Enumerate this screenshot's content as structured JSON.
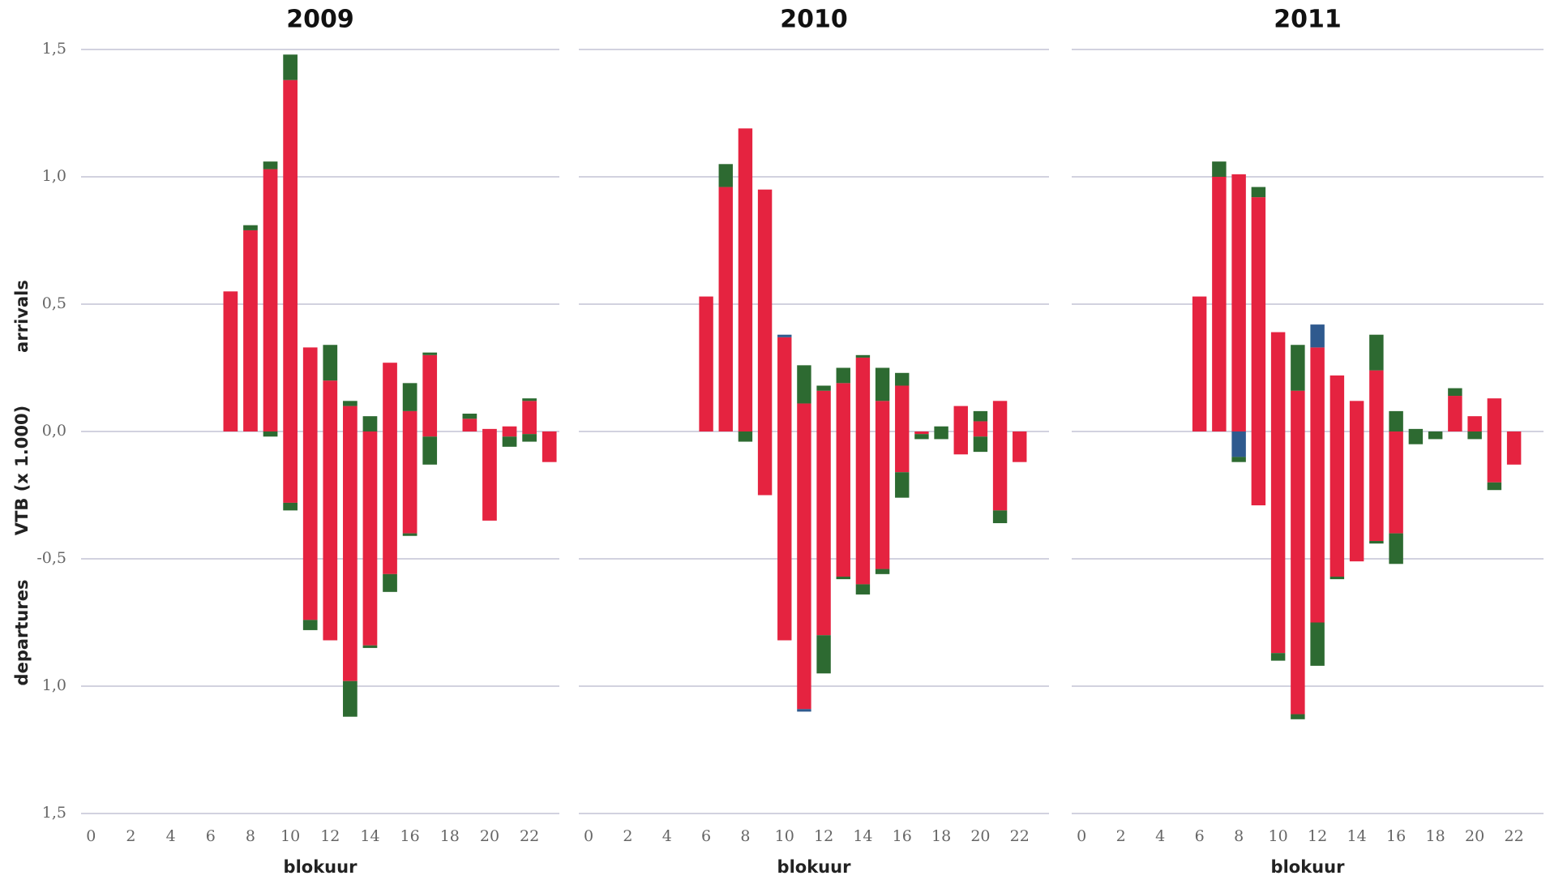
{
  "chart_data": [
    {
      "type": "bar",
      "title": "2009",
      "xlabel": "blokuur",
      "ylabel": "VTB (x 1.000)",
      "annotations": [
        "arrivals",
        "departures"
      ],
      "categories": [
        0,
        null,
        2,
        null,
        4,
        null,
        6,
        null,
        8,
        null,
        10,
        null,
        12,
        null,
        14,
        null,
        16,
        null,
        18,
        null,
        20,
        null,
        22,
        null
      ],
      "ylim": [
        -1.5,
        1.5
      ],
      "yticks": [
        {
          "value": 1.5,
          "label": "1,5"
        },
        {
          "value": 1,
          "label": "1,0"
        },
        {
          "value": 0.5,
          "label": "0,5"
        },
        {
          "value": 0,
          "label": "0,0"
        },
        {
          "value": -0.5,
          "label": "-0,5"
        },
        {
          "value": -1,
          "label": "1,0"
        },
        {
          "value": -1.5,
          "label": "1,5"
        }
      ],
      "series": [
        {
          "color": "#e52340",
          "values": [
            0,
            0,
            0,
            0,
            0,
            0,
            0,
            0.55,
            0.79,
            1.03,
            1.38,
            0.33,
            0.2,
            0.1,
            0,
            0.27,
            0.08,
            0.3,
            0,
            0.05,
            0.01,
            0.02,
            0.12,
            0
          ]
        },
        {
          "color": "#2d6a31",
          "values": [
            0,
            0,
            0,
            0,
            0,
            0,
            0,
            0,
            0.02,
            0.03,
            0.1,
            0,
            0.14,
            0.02,
            0.06,
            0,
            0.11,
            0.01,
            0,
            0.02,
            0,
            0,
            0.01,
            0
          ]
        },
        {
          "color": "#2f5a8e",
          "values": [
            0,
            0,
            0,
            0,
            0,
            0,
            0,
            0,
            0,
            0,
            0,
            0,
            0,
            0,
            0,
            0,
            0,
            0,
            0,
            0,
            0,
            0,
            0,
            0
          ]
        },
        {
          "color": "#e52340",
          "values": [
            0,
            0,
            0,
            0,
            0,
            0,
            0,
            0,
            0,
            0,
            -0.28,
            -0.74,
            -0.82,
            -0.98,
            -0.84,
            -0.56,
            -0.4,
            -0.02,
            0,
            0,
            -0.35,
            -0.02,
            -0.01,
            -0.12
          ]
        },
        {
          "color": "#2f5a8e",
          "values": [
            0,
            0,
            0,
            0,
            0,
            0,
            0,
            0,
            0,
            0,
            0,
            0,
            0,
            0,
            0,
            0,
            0,
            0,
            0,
            0,
            0,
            0,
            0,
            0
          ]
        },
        {
          "color": "#2d6a31",
          "values": [
            0,
            0,
            0,
            0,
            0,
            0,
            0,
            0,
            0,
            -0.02,
            -0.03,
            -0.04,
            0,
            -0.14,
            -0.01,
            -0.07,
            -0.01,
            -0.11,
            0,
            0,
            0,
            -0.04,
            -0.03,
            0
          ]
        }
      ]
    },
    {
      "type": "bar",
      "title": "2010",
      "xlabel": "blokuur",
      "categories": [
        0,
        null,
        2,
        null,
        4,
        null,
        6,
        null,
        8,
        null,
        10,
        null,
        12,
        null,
        14,
        null,
        16,
        null,
        18,
        null,
        20,
        null,
        22,
        null
      ],
      "ylim": [
        -1.5,
        1.5
      ],
      "yticks": [
        1.5,
        1,
        0.5,
        0,
        -0.5,
        -1,
        -1.5
      ],
      "series": [
        {
          "color": "#e52340",
          "values": [
            0,
            0,
            0,
            0,
            0,
            0,
            0.53,
            0.96,
            1.19,
            0.95,
            0.37,
            0.11,
            0.16,
            0.19,
            0.29,
            0.12,
            0.18,
            0,
            0,
            0.1,
            0.04,
            0.12,
            0,
            0
          ]
        },
        {
          "color": "#2d6a31",
          "values": [
            0,
            0,
            0,
            0,
            0,
            0,
            0,
            0.09,
            0,
            0,
            0,
            0.15,
            0.02,
            0.06,
            0.01,
            0.13,
            0.05,
            0,
            0.02,
            0,
            0.04,
            0,
            0,
            0
          ]
        },
        {
          "color": "#2f5a8e",
          "values": [
            0,
            0,
            0,
            0,
            0,
            0,
            0,
            0,
            0,
            0,
            0.01,
            0,
            0,
            0,
            0,
            0,
            0,
            0,
            0,
            0,
            0,
            0,
            0,
            0
          ]
        },
        {
          "color": "#e52340",
          "values": [
            0,
            0,
            0,
            0,
            0,
            0,
            0,
            0,
            0,
            -0.25,
            -0.82,
            -1.09,
            -0.8,
            -0.57,
            -0.6,
            -0.54,
            -0.16,
            -0.01,
            0,
            -0.09,
            -0.02,
            -0.31,
            -0.12,
            0
          ]
        },
        {
          "color": "#2f5a8e",
          "values": [
            0,
            0,
            0,
            0,
            0,
            0,
            0,
            0,
            0,
            0,
            0,
            -0.01,
            0,
            0,
            0,
            0,
            0,
            0,
            0,
            0,
            0,
            0,
            0,
            0
          ]
        },
        {
          "color": "#2d6a31",
          "values": [
            0,
            0,
            0,
            0,
            0,
            0,
            0,
            0,
            -0.04,
            0,
            0,
            0,
            -0.15,
            -0.01,
            -0.04,
            -0.02,
            -0.1,
            -0.02,
            -0.03,
            0,
            -0.06,
            -0.05,
            0,
            0
          ]
        }
      ]
    },
    {
      "type": "bar",
      "title": "2011",
      "xlabel": "blokuur",
      "categories": [
        0,
        null,
        2,
        null,
        4,
        null,
        6,
        null,
        8,
        null,
        10,
        null,
        12,
        null,
        14,
        null,
        16,
        null,
        18,
        null,
        20,
        null,
        22,
        null
      ],
      "ylim": [
        -1.5,
        1.5
      ],
      "yticks": [
        1.5,
        1,
        0.5,
        0,
        -0.5,
        -1,
        -1.5
      ],
      "series": [
        {
          "color": "#e52340",
          "values": [
            0,
            0,
            0,
            0,
            0,
            0,
            0.53,
            1.0,
            1.01,
            0.92,
            0.39,
            0.16,
            0.33,
            0.22,
            0.12,
            0.24,
            0,
            0,
            0,
            0.14,
            0.06,
            0.13,
            0,
            0
          ]
        },
        {
          "color": "#2d6a31",
          "values": [
            0,
            0,
            0,
            0,
            0,
            0,
            0,
            0.06,
            0,
            0.04,
            0,
            0.18,
            0,
            0,
            0,
            0.14,
            0.08,
            0.01,
            0,
            0.03,
            0,
            0,
            0,
            0
          ]
        },
        {
          "color": "#2f5a8e",
          "values": [
            0,
            0,
            0,
            0,
            0,
            0,
            0,
            0,
            0,
            0,
            0,
            0,
            0.09,
            0,
            0,
            0,
            0,
            0,
            0,
            0,
            0,
            0,
            0,
            0
          ]
        },
        {
          "color": "#e52340",
          "values": [
            0,
            0,
            0,
            0,
            0,
            0,
            0,
            0,
            0,
            -0.29,
            -0.87,
            -1.11,
            -0.75,
            -0.57,
            -0.51,
            -0.43,
            -0.4,
            0,
            0,
            0,
            0,
            -0.2,
            -0.13,
            0
          ]
        },
        {
          "color": "#2f5a8e",
          "values": [
            0,
            0,
            0,
            0,
            0,
            0,
            0,
            0,
            -0.1,
            0,
            0,
            0,
            0,
            0,
            0,
            0,
            0,
            0,
            0,
            0,
            0,
            0,
            0,
            0
          ]
        },
        {
          "color": "#2d6a31",
          "values": [
            0,
            0,
            0,
            0,
            0,
            0,
            0,
            0,
            -0.02,
            0,
            -0.03,
            -0.02,
            -0.17,
            -0.01,
            0,
            -0.01,
            -0.12,
            -0.05,
            -0.03,
            0,
            -0.03,
            -0.03,
            0,
            0
          ]
        }
      ]
    }
  ]
}
